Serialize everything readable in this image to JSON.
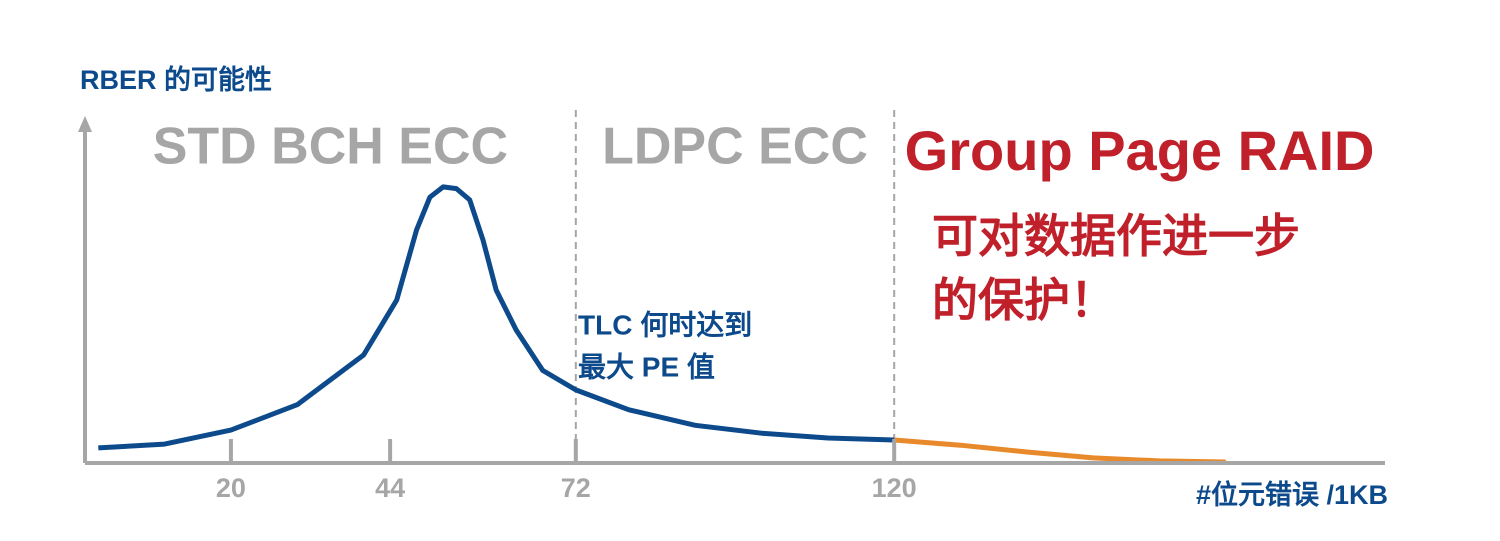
{
  "chart_data": {
    "type": "line",
    "y_label": "RBER 的可能性",
    "x_label": "#位元错误 /1KB",
    "xlim": [
      -2,
      194
    ],
    "ylim": [
      0,
      100
    ],
    "xticks": [
      20,
      44,
      72,
      120
    ],
    "regions": [
      {
        "label": "STD BCH ECC",
        "xrange": [
          -2,
          72
        ],
        "color": "#a6a6a6"
      },
      {
        "label": "LDPC ECC",
        "xrange": [
          72,
          120
        ],
        "color": "#a6a6a6"
      },
      {
        "label": "Group Page RAID",
        "xrange": [
          120,
          194
        ],
        "color": "#c0202a"
      }
    ],
    "annotations": [
      {
        "lines": [
          "TLC 何时达到",
          "最大 PE 值"
        ],
        "color": "#0d4a8c"
      },
      {
        "lines": [
          "可对数据作进一步",
          "的保护！"
        ],
        "color": "#c0202a"
      }
    ],
    "series": [
      {
        "color": "#0d4a8c",
        "x": [
          0,
          10,
          20,
          30,
          40,
          45,
          48,
          50,
          52,
          54,
          56,
          58,
          60,
          63,
          67,
          72,
          80,
          90,
          100,
          110,
          120
        ],
        "values": [
          4.4,
          5.5,
          9.6,
          17,
          31.5,
          47.5,
          68,
          77.5,
          80.5,
          80,
          76.7,
          65,
          50.4,
          38.8,
          27,
          21.3,
          15.5,
          11,
          8.7,
          7.3,
          6.7
        ]
      },
      {
        "color": "#e8892b",
        "x": [
          120,
          130,
          140,
          150,
          160,
          170
        ],
        "values": [
          6.7,
          5.2,
          3.2,
          1.5,
          0.6,
          0.3
        ]
      }
    ]
  }
}
